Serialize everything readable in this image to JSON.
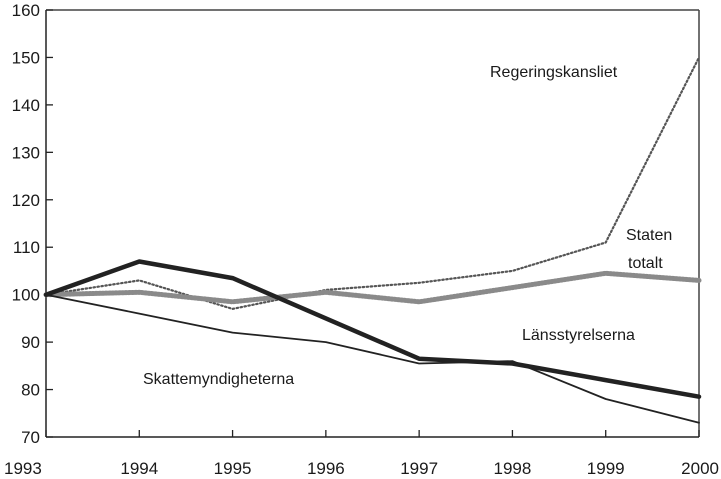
{
  "chart_data": {
    "type": "line",
    "x": [
      1993,
      1994,
      1995,
      1996,
      1997,
      1998,
      1999,
      2000
    ],
    "x_tick_labels": [
      "1993",
      "1994",
      "1995",
      "1996",
      "1997",
      "1998",
      "1999",
      "2000"
    ],
    "xlim": [
      1993,
      2000
    ],
    "ylim": [
      70,
      160
    ],
    "y_ticks": [
      70,
      80,
      90,
      100,
      110,
      120,
      130,
      140,
      150,
      160
    ],
    "y_tick_labels": [
      "70",
      "80",
      "90",
      "100",
      "110",
      "120",
      "130",
      "140",
      "150",
      "160"
    ],
    "grid": false,
    "series": [
      {
        "key": "regeringskansliet",
        "name": "Regeringskansliet",
        "style": "dotted-thin",
        "color": "#555555",
        "values": [
          100,
          103,
          97,
          101,
          102.5,
          105,
          111,
          150
        ]
      },
      {
        "key": "staten",
        "name": "Staten totalt",
        "name_lines": [
          "Staten",
          "totalt"
        ],
        "style": "dotted-thick",
        "color": "#8a8a8a",
        "values": [
          100,
          100.5,
          98.5,
          100.5,
          98.5,
          101.5,
          104.5,
          103
        ]
      },
      {
        "key": "lansstyrelserna",
        "name": "Länsstyrelserna",
        "style": "solid-thick",
        "color": "#222222",
        "values": [
          100,
          107,
          103.5,
          95,
          86.5,
          85.5,
          82,
          78.5
        ]
      },
      {
        "key": "skattemyndigheterna",
        "name": "Skattemyndigheterna",
        "style": "solid-thin",
        "color": "#222222",
        "values": [
          100,
          96,
          92,
          90,
          85.5,
          86,
          78,
          73
        ]
      }
    ]
  }
}
